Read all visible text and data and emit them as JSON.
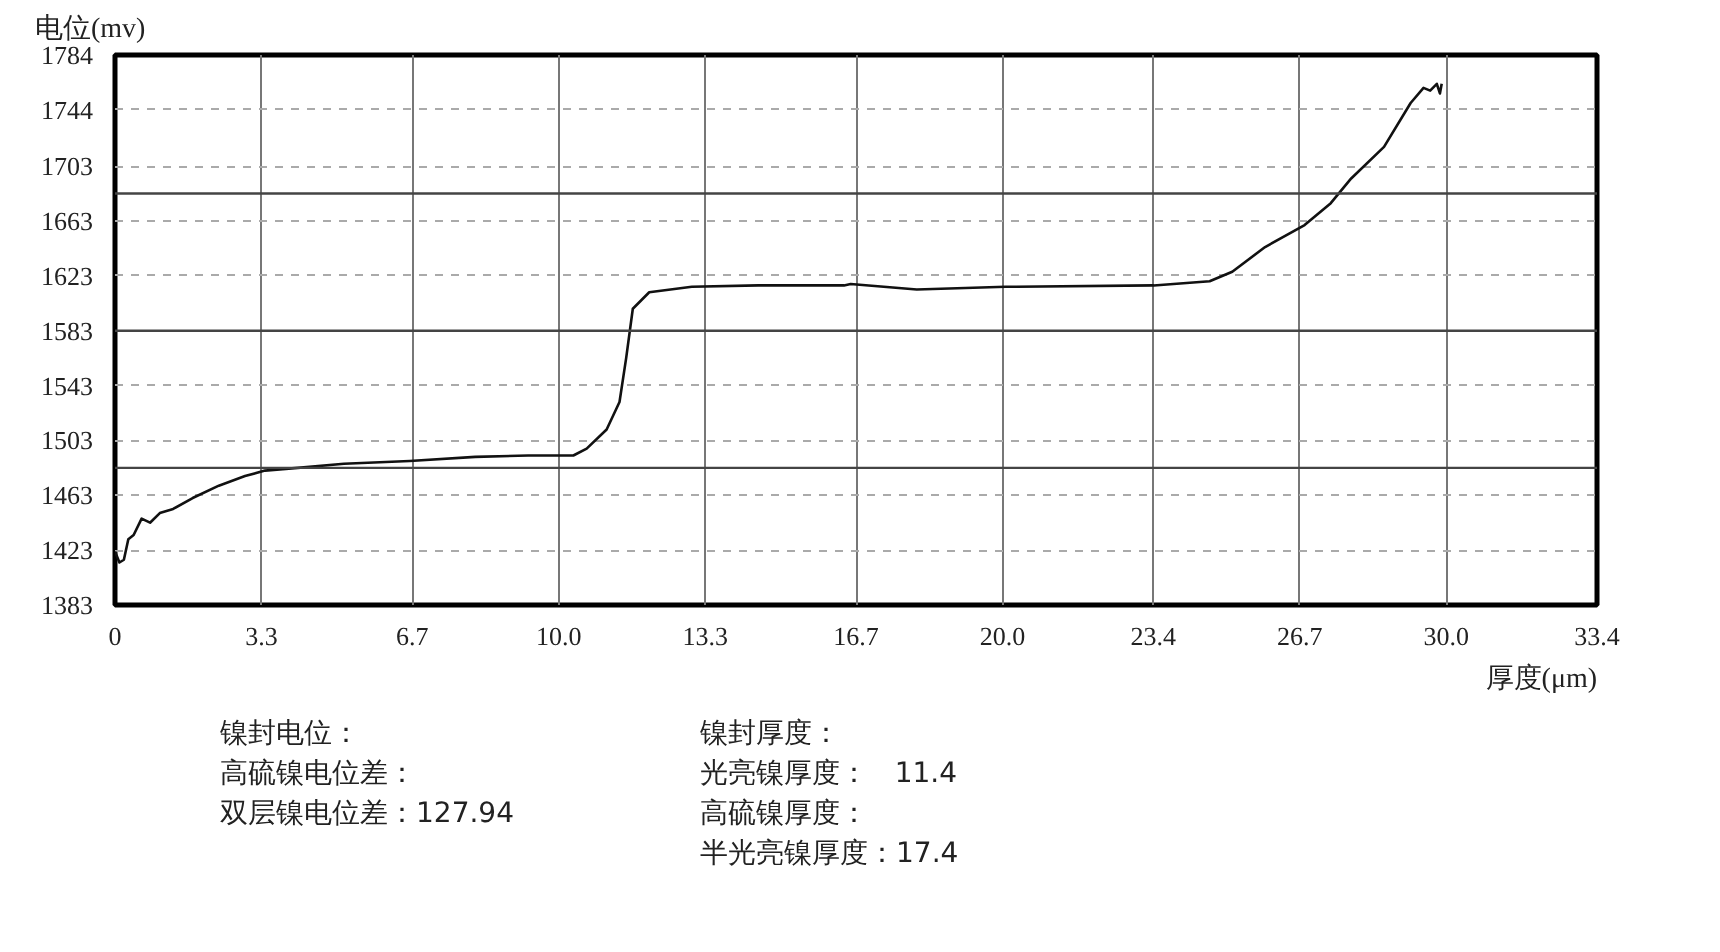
{
  "chart_data": {
    "type": "line",
    "ylabel": "电位(mv)",
    "xlabel": "厚度(μm)",
    "xlim": [
      0,
      33.4
    ],
    "ylim": [
      1383,
      1784
    ],
    "xticks": [
      0,
      3.3,
      6.7,
      {
        "value": 10,
        "label": "10.0"
      },
      13.3,
      16.7,
      {
        "value": 20,
        "label": "20.0"
      },
      23.4,
      26.7,
      {
        "value": 30,
        "label": "30.0"
      },
      33.4
    ],
    "yticks": [
      1383,
      1423,
      1463,
      1503,
      1543,
      1583,
      1623,
      1663,
      1703,
      1744,
      1784
    ],
    "grid": true,
    "marker": "none",
    "line_style": "solid",
    "ref_lines": [
      {
        "axis": "y",
        "value": 1483,
        "color": "#444444"
      },
      {
        "axis": "y",
        "value": 1583,
        "color": "#444444"
      },
      {
        "axis": "y",
        "value": 1683,
        "color": "#444444"
      }
    ],
    "series": [
      {
        "color": "#111111",
        "x": [
          0,
          0.1,
          0.2,
          0.3,
          0.42,
          0.6,
          0.79,
          1.01,
          1.31,
          1.75,
          2.34,
          2.93,
          3.38,
          4.12,
          5.16,
          6.64,
          8.12,
          9.31,
          10.33,
          10.63,
          11.08,
          11.37,
          11.52,
          11.67,
          12.04,
          13.0,
          14.5,
          16.43,
          16.58,
          18.07,
          20.07,
          23.41,
          24.67,
          25.18,
          25.92,
          26.81,
          27.4,
          27.86,
          28.6,
          29.2,
          29.49,
          29.64,
          29.79,
          29.86,
          29.9
        ],
        "values": [
          1422,
          1414,
          1416,
          1431,
          1434,
          1446,
          1443,
          1450,
          1453,
          1461,
          1470,
          1477,
          1481,
          1483,
          1486,
          1488,
          1491,
          1492,
          1492,
          1497,
          1511,
          1531,
          1563,
          1599,
          1611,
          1615,
          1616,
          1616,
          1617,
          1613,
          1615,
          1616,
          1619,
          1626,
          1644,
          1660,
          1676,
          1694,
          1717,
          1749,
          1760,
          1758,
          1763,
          1756,
          1763
        ]
      }
    ],
    "annotations": [
      "镍封电位：",
      "高硫镍电位差：",
      "双层镍电位差：127.94",
      "镍封厚度：",
      "光亮镍厚度：   11.4",
      "高硫镍厚度：",
      "半光亮镍厚度：17.4"
    ]
  }
}
